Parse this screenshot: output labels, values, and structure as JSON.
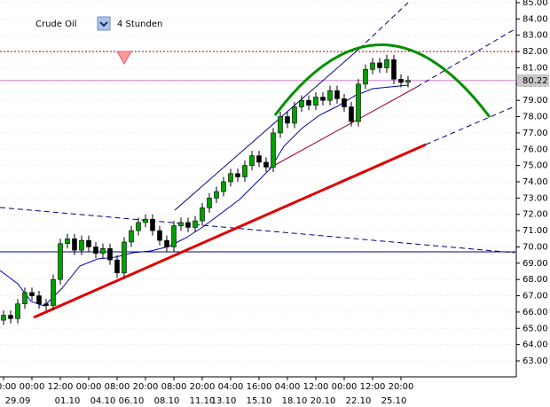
{
  "chart_data": {
    "type": "candlestick",
    "title": "Crude Oil",
    "timeframe": "4 Stunden",
    "categories": [
      "00:00",
      null,
      null,
      null,
      "00:00",
      null,
      null,
      null,
      "12:00",
      null,
      null,
      null,
      "00:00",
      null,
      null,
      null,
      "08:00",
      null,
      null,
      null,
      "20:00",
      null,
      null,
      null,
      "08:00",
      null,
      null,
      null,
      "20:00",
      null,
      null,
      null,
      "04:00",
      null,
      null,
      null,
      "16:00",
      null,
      null,
      null,
      "04:00",
      null,
      null,
      null,
      "12:00",
      null,
      null,
      null,
      "00:00",
      null,
      null,
      null,
      "12:00",
      null,
      null,
      null,
      "20:00",
      null
    ],
    "date_labels": [
      null,
      null,
      "29.09",
      null,
      null,
      null,
      null,
      null,
      null,
      "01.10",
      null,
      null,
      null,
      null,
      "04.10",
      null,
      null,
      null,
      "06.10",
      null,
      null,
      null,
      null,
      "08.10",
      null,
      null,
      null,
      null,
      "11.10",
      null,
      null,
      "13.10",
      null,
      null,
      null,
      null,
      "15.10",
      null,
      null,
      null,
      null,
      "18.10",
      null,
      null,
      null,
      "20.10",
      null,
      null,
      null,
      null,
      "22.10",
      null,
      null,
      null,
      null,
      "25.10",
      null,
      null
    ],
    "open": [
      65.5,
      65.8,
      65.6,
      66.5,
      67.2,
      67.0,
      66.5,
      66.4,
      68.0,
      70.2,
      70.5,
      69.8,
      70.4,
      70.0,
      69.6,
      69.9,
      69.2,
      68.4,
      70.3,
      71.0,
      71.5,
      71.7,
      71.0,
      70.4,
      70.0,
      71.3,
      71.5,
      71.2,
      71.6,
      72.4,
      73.0,
      73.4,
      74.0,
      74.5,
      74.3,
      75.0,
      75.6,
      75.2,
      74.9,
      77.0,
      78.0,
      77.6,
      78.6,
      79.0,
      78.7,
      79.2,
      79.0,
      79.6,
      79.1,
      78.6,
      77.7,
      80.0,
      80.9,
      81.3,
      81.0,
      81.5,
      80.3,
      80.1
    ],
    "high": [
      66.1,
      66.1,
      66.8,
      67.5,
      67.5,
      67.3,
      66.8,
      68.3,
      70.5,
      70.8,
      70.8,
      70.7,
      70.7,
      70.3,
      70.2,
      70.2,
      69.5,
      70.6,
      71.3,
      71.8,
      72.0,
      72.0,
      71.3,
      70.7,
      71.6,
      71.8,
      71.8,
      71.9,
      72.7,
      73.3,
      73.7,
      74.3,
      74.8,
      74.8,
      75.3,
      75.9,
      75.9,
      75.5,
      77.3,
      78.3,
      78.3,
      78.9,
      79.3,
      79.3,
      79.5,
      79.5,
      79.9,
      79.9,
      79.4,
      78.9,
      80.3,
      81.2,
      81.6,
      81.6,
      81.8,
      81.8,
      80.6,
      80.5
    ],
    "low": [
      65.2,
      65.3,
      65.3,
      66.2,
      66.7,
      66.2,
      66.1,
      66.1,
      67.7,
      69.9,
      69.5,
      69.5,
      69.7,
      69.3,
      69.3,
      68.9,
      68.1,
      68.1,
      70.0,
      70.7,
      71.2,
      70.7,
      70.1,
      69.7,
      69.7,
      71.0,
      70.9,
      70.9,
      71.3,
      72.1,
      72.7,
      73.1,
      73.7,
      74.0,
      74.0,
      74.7,
      74.9,
      74.6,
      74.6,
      76.7,
      77.3,
      77.3,
      78.3,
      78.4,
      78.4,
      78.7,
      78.7,
      78.8,
      78.3,
      77.4,
      77.4,
      79.7,
      80.6,
      80.7,
      80.7,
      80.0,
      79.8,
      79.8
    ],
    "close": [
      65.8,
      65.6,
      66.5,
      67.2,
      67.0,
      66.5,
      66.4,
      68.0,
      70.2,
      70.5,
      69.8,
      70.4,
      70.0,
      69.6,
      69.9,
      69.2,
      68.4,
      70.3,
      71.0,
      71.5,
      71.7,
      71.0,
      70.4,
      70.0,
      71.3,
      71.5,
      71.2,
      71.6,
      72.4,
      73.0,
      73.4,
      74.0,
      74.5,
      74.3,
      75.0,
      75.6,
      75.2,
      74.9,
      77.0,
      78.0,
      77.6,
      78.6,
      79.0,
      78.7,
      79.2,
      79.0,
      79.6,
      79.1,
      78.6,
      77.7,
      80.0,
      80.9,
      81.3,
      81.0,
      81.5,
      80.3,
      80.1,
      80.22
    ],
    "up_color": "#00a000",
    "down_color": "#000000",
    "current_price": 80.22,
    "levels": [
      {
        "value": 82,
        "color": "#c00000",
        "style": "dotted"
      },
      {
        "value": 69.7,
        "color": "#000080",
        "style": "solid"
      }
    ],
    "ylim": [
      63,
      85
    ],
    "yticks": [
      {
        "value": 63,
        "label": "63.00"
      },
      {
        "value": 64,
        "label": "64.00"
      },
      {
        "value": 65,
        "label": "65.00"
      },
      {
        "value": 66,
        "label": "66.00"
      },
      {
        "value": 67,
        "label": "67.00"
      },
      {
        "value": 68,
        "label": "68.00"
      },
      {
        "value": 69,
        "label": "69.00"
      },
      {
        "value": 70,
        "label": "70.00"
      },
      {
        "value": 71,
        "label": "71.00"
      },
      {
        "value": 72,
        "label": "72.00"
      },
      {
        "value": 73,
        "label": "73.00"
      },
      {
        "value": 74,
        "label": "74.00"
      },
      {
        "value": 75,
        "label": "75.00"
      },
      {
        "value": 76,
        "label": "76.00"
      },
      {
        "value": 77,
        "label": "77.00"
      },
      {
        "value": 78,
        "label": "78.00"
      },
      {
        "value": 79,
        "label": "79.00"
      },
      {
        "value": 80,
        "label": "80.00"
      },
      {
        "value": 81,
        "label": "81.00"
      },
      {
        "value": 82,
        "label": "82.00"
      },
      {
        "value": 83,
        "label": "83.00"
      },
      {
        "value": 84,
        "label": "84.00"
      },
      {
        "value": 85,
        "label": "85.00"
      }
    ],
    "grid": true
  }
}
